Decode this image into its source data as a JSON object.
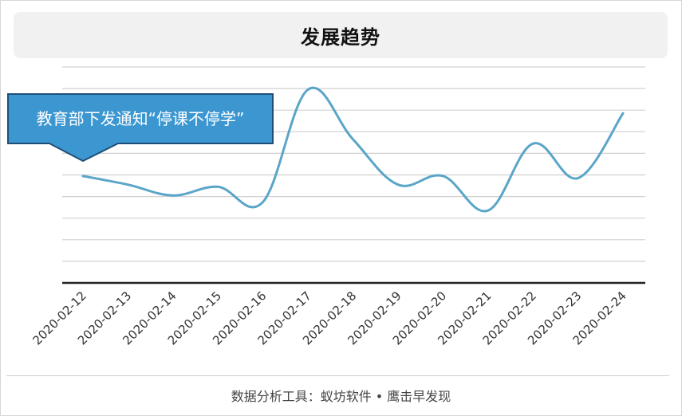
{
  "title": "发展趋势",
  "footer": "数据分析工具：蚁坊软件 • 鹰击早发现",
  "colors": {
    "line": "#5aa5c8",
    "gridline": "#d0d0d0",
    "axis": "#222222",
    "annotation_fill": "#3c97d1",
    "annotation_border": "#1f4f78",
    "annotation_text": "#ffffff"
  },
  "chart_data": {
    "type": "line",
    "title": "发展趋势",
    "categories": [
      "2020-02-12",
      "2020-02-13",
      "2020-02-14",
      "2020-02-15",
      "2020-02-16",
      "2020-02-17",
      "2020-02-18",
      "2020-02-19",
      "2020-02-20",
      "2020-02-21",
      "2020-02-22",
      "2020-02-23",
      "2020-02-24"
    ],
    "series": [
      {
        "values": [
          49.5,
          45.5,
          40.5,
          44.5,
          37.5,
          89.5,
          66.5,
          45.5,
          49.5,
          33.5,
          64.5,
          48.5,
          78.5
        ]
      }
    ],
    "ylim": [
      0,
      100
    ],
    "y_gridlines": 10,
    "grid": true,
    "annotations": [
      {
        "category": "2020-02-12",
        "text": "教育部下发通知“停课不停学”"
      }
    ]
  }
}
